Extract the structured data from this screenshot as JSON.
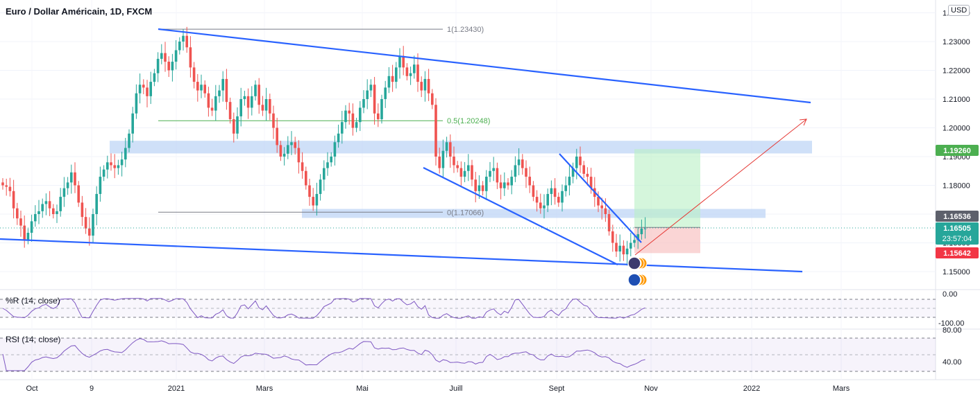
{
  "header": {
    "title": "Euro / Dollar Américain, 1D, FXCM",
    "currency": "USD"
  },
  "colors": {
    "up": "#26a69a",
    "down": "#ef5350",
    "trendline": "#2962ff",
    "zone": "#bbd3f5",
    "target_zone": "#b9f0c4",
    "stop_zone": "#f8c3c3",
    "arrow": "#e53935",
    "indicator": "#7e57c2",
    "fib_mid": "#4caf50",
    "price_tag": "#26a69a",
    "current_label": "#5d606b",
    "target_label": "#4caf50",
    "stop_label": "#f23645"
  },
  "chart_data": {
    "type": "candlestick",
    "symbol": "Euro / Dollar Américain",
    "interval": "1D",
    "source": "FXCM",
    "y_axis": {
      "ticks": [
        "1.24000",
        "1.23000",
        "1.22000",
        "1.21000",
        "1.20000",
        "1.19000",
        "1.18000",
        "1.17000",
        "1.16000",
        "1.15000"
      ],
      "range": [
        1.147,
        1.243
      ]
    },
    "x_axis": {
      "labels": [
        "Oct",
        "9",
        "2021",
        "Mars",
        "Mai",
        "Juill",
        "Sept",
        "Nov",
        "2022",
        "Mars"
      ]
    },
    "price_labels": {
      "target": "1.19260",
      "current": "1.16536",
      "last": "1.16505",
      "countdown": "23:57:04",
      "stop": "1.15642"
    },
    "fibonacci": [
      {
        "label": "1(1.23430)",
        "value": 1.2343
      },
      {
        "label": "0.5(1.20248)",
        "value": 1.20248
      },
      {
        "label": "0(1.17066)",
        "value": 1.17066
      }
    ],
    "zones": [
      {
        "low": 1.1935,
        "high": 1.1955
      },
      {
        "low": 1.1703,
        "high": 1.1718
      }
    ],
    "position": {
      "entry": 1.16536,
      "target": 1.1926,
      "stop": 1.15642
    },
    "close_series": [
      1.18,
      1.1795,
      1.178,
      1.172,
      1.1685,
      1.166,
      1.161,
      1.1635,
      1.1675,
      1.17,
      1.171,
      1.1735,
      1.1745,
      1.172,
      1.17,
      1.171,
      1.176,
      1.179,
      1.181,
      1.1845,
      1.18,
      1.174,
      1.169,
      1.165,
      1.1625,
      1.17,
      1.177,
      1.183,
      1.1855,
      1.188,
      1.187,
      1.186,
      1.187,
      1.189,
      1.193,
      1.198,
      1.205,
      1.212,
      1.215,
      1.214,
      1.211,
      1.216,
      1.219,
      1.224,
      1.226,
      1.223,
      1.22,
      1.223,
      1.227,
      1.23,
      1.232,
      1.228,
      1.221,
      1.216,
      1.213,
      1.215,
      1.212,
      1.207,
      1.206,
      1.211,
      1.213,
      1.217,
      1.209,
      1.203,
      1.198,
      1.204,
      1.21,
      1.211,
      1.207,
      1.211,
      1.215,
      1.208,
      1.206,
      1.21,
      1.205,
      1.2,
      1.194,
      1.19,
      1.191,
      1.194,
      1.195,
      1.193,
      1.188,
      1.185,
      1.18,
      1.176,
      1.173,
      1.177,
      1.182,
      1.186,
      1.188,
      1.19,
      1.195,
      1.198,
      1.202,
      1.206,
      1.205,
      1.2,
      1.202,
      1.207,
      1.21,
      1.213,
      1.215,
      1.205,
      1.203,
      1.21,
      1.214,
      1.218,
      1.216,
      1.221,
      1.225,
      1.221,
      1.218,
      1.219,
      1.222,
      1.216,
      1.213,
      1.217,
      1.212,
      1.208,
      1.19,
      1.186,
      1.192,
      1.195,
      1.19,
      1.187,
      1.186,
      1.183,
      1.185,
      1.187,
      1.182,
      1.178,
      1.18,
      1.178,
      1.183,
      1.185,
      1.186,
      1.181,
      1.179,
      1.181,
      1.18,
      1.183,
      1.187,
      1.189,
      1.186,
      1.183,
      1.18,
      1.176,
      1.174,
      1.172,
      1.173,
      1.177,
      1.179,
      1.176,
      1.174,
      1.178,
      1.18,
      1.183,
      1.186,
      1.19,
      1.187,
      1.184,
      1.183,
      1.179,
      1.176,
      1.173,
      1.172,
      1.17,
      1.164,
      1.16,
      1.157,
      1.159,
      1.156,
      1.158,
      1.16,
      1.161,
      1.163,
      1.165,
      1.165
    ]
  },
  "indicators": {
    "williams": {
      "label": "%R (14, close)",
      "ticks": [
        "0.00",
        "-100.00"
      ]
    },
    "rsi": {
      "label": "RSI (14, close)",
      "ticks": [
        "80.00",
        "40.00"
      ]
    }
  }
}
